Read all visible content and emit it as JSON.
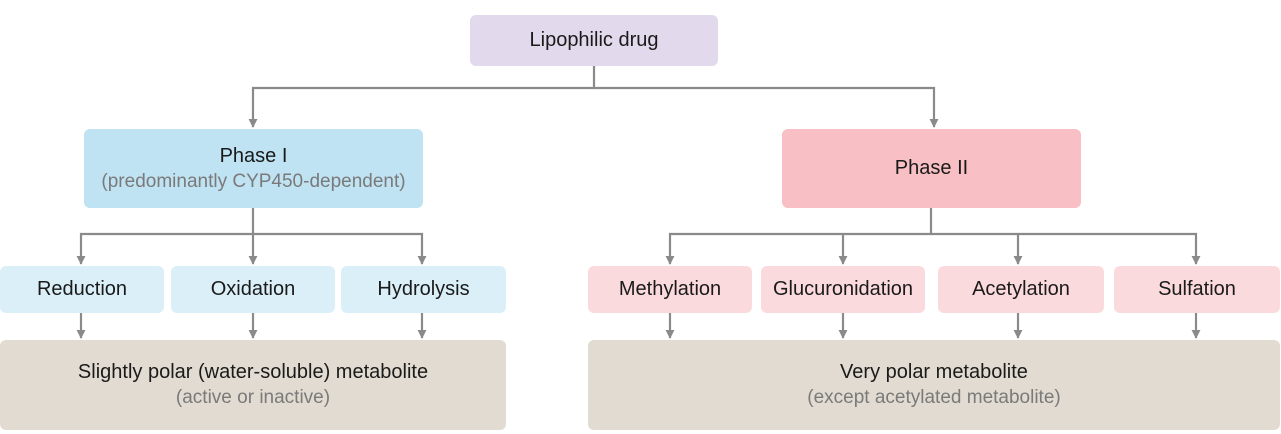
{
  "colors": {
    "root": "#e3d9ec",
    "phase1": "#bfe3f3",
    "phase1_method": "#dbeff8",
    "phase2": "#f8bfc4",
    "phase2_method": "#fbdadd",
    "metabolite": "#e2dbd1",
    "connector": "#8a8a8a"
  },
  "root": {
    "label": "Lipophilic drug"
  },
  "phase1": {
    "title": "Phase I",
    "subtitle": "(predominantly CYP450-dependent)",
    "methods": [
      "Reduction",
      "Oxidation",
      "Hydrolysis"
    ],
    "result": {
      "title": "Slightly polar (water-soluble) metabolite",
      "subtitle": "(active or inactive)"
    }
  },
  "phase2": {
    "title": "Phase II",
    "methods": [
      "Methylation",
      "Glucuronidation",
      "Acetylation",
      "Sulfation"
    ],
    "result": {
      "title": "Very polar metabolite",
      "subtitle": "(except acetylated metabolite)"
    }
  }
}
